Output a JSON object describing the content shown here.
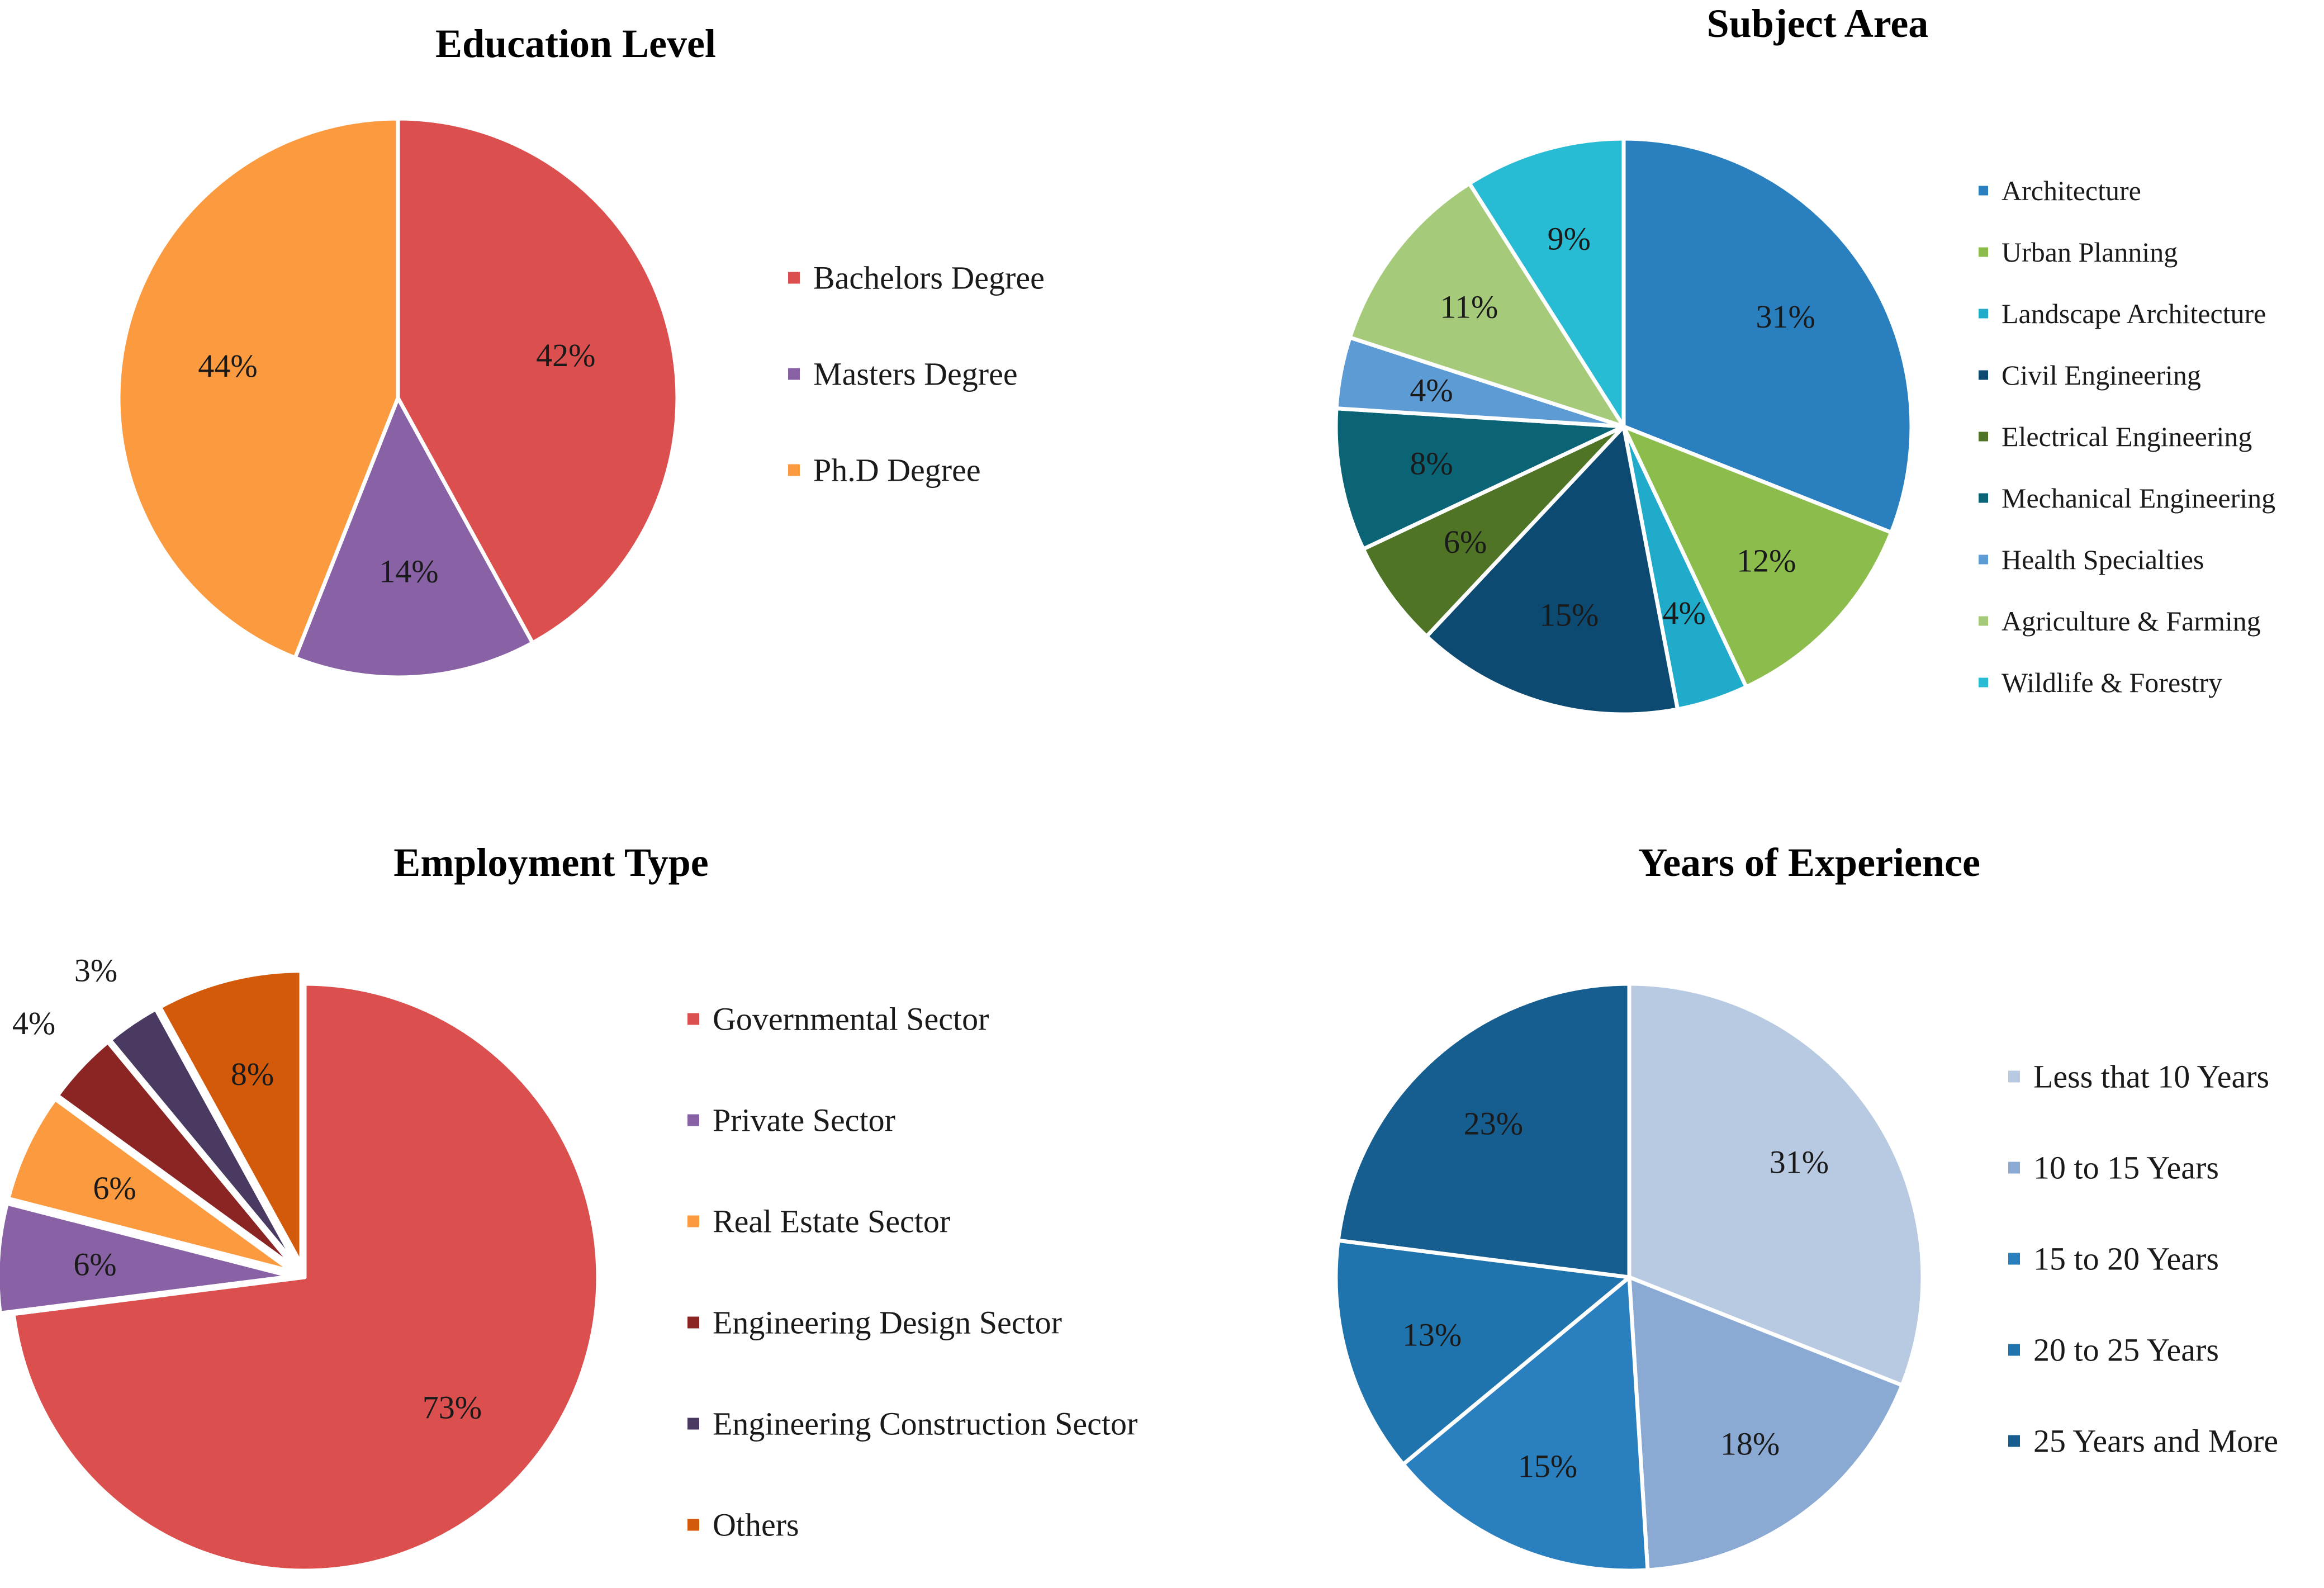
{
  "chart_data": [
    {
      "type": "pie",
      "title": "Education Level",
      "categories": [
        "Bachelors Degree",
        "Masters Degree",
        "Ph.D Degree"
      ],
      "values": [
        42,
        14,
        44
      ],
      "labels": [
        "42%",
        "14%",
        "44%"
      ],
      "colors": [
        "#dc4f4f",
        "#8862a5",
        "#fb9a3f"
      ],
      "legend_position": "right"
    },
    {
      "type": "pie",
      "title": "Subject Area",
      "categories": [
        "Architecture",
        "Urban Planning",
        "Landscape Architecture",
        "Civil Engineering",
        "Electrical Engineering",
        "Mechanical Engineering",
        "Health Specialties",
        "Agriculture & Farming",
        "Wildlife & Forestry"
      ],
      "values": [
        31,
        12,
        4,
        15,
        6,
        8,
        4,
        11,
        9
      ],
      "labels": [
        "31%",
        "12%",
        "4%",
        "15%",
        "6%",
        "8%",
        "4%",
        "11%",
        "9%"
      ],
      "colors": [
        "#2a80bf",
        "#8cbd4c",
        "#1fabc9",
        "#0d4a72",
        "#4f7425",
        "#0b6475",
        "#5c9bd4",
        "#a5cb7a",
        "#27bcd3"
      ],
      "legend_position": "right"
    },
    {
      "type": "pie",
      "title": "Employment Type",
      "categories": [
        "Governmental Sector",
        "Private Sector",
        "Real Estate Sector",
        "Engineering Design Sector",
        "Engineering Construction Sector",
        "Others"
      ],
      "values": [
        73,
        6,
        6,
        4,
        3,
        8
      ],
      "labels": [
        "73%",
        "6%",
        "6%",
        "4%",
        "3%",
        "8%"
      ],
      "colors": [
        "#dc4f4f",
        "#8862a5",
        "#fb9a3f",
        "#8b2523",
        "#4a3a62",
        "#d35a0a"
      ],
      "legend_position": "right"
    },
    {
      "type": "pie",
      "title": "Years of Experience",
      "categories": [
        "Less that 10 Years",
        "10 to 15 Years",
        "15 to 20 Years",
        "20 to 25 Years",
        "25 Years and More"
      ],
      "values": [
        31,
        18,
        15,
        13,
        23
      ],
      "labels": [
        "31%",
        "18%",
        "15%",
        "13%",
        "23%"
      ],
      "colors": [
        "#b8cae2",
        "#8aaad3",
        "#2a80bf",
        "#1f74ad",
        "#175e90"
      ],
      "legend_position": "right"
    }
  ]
}
